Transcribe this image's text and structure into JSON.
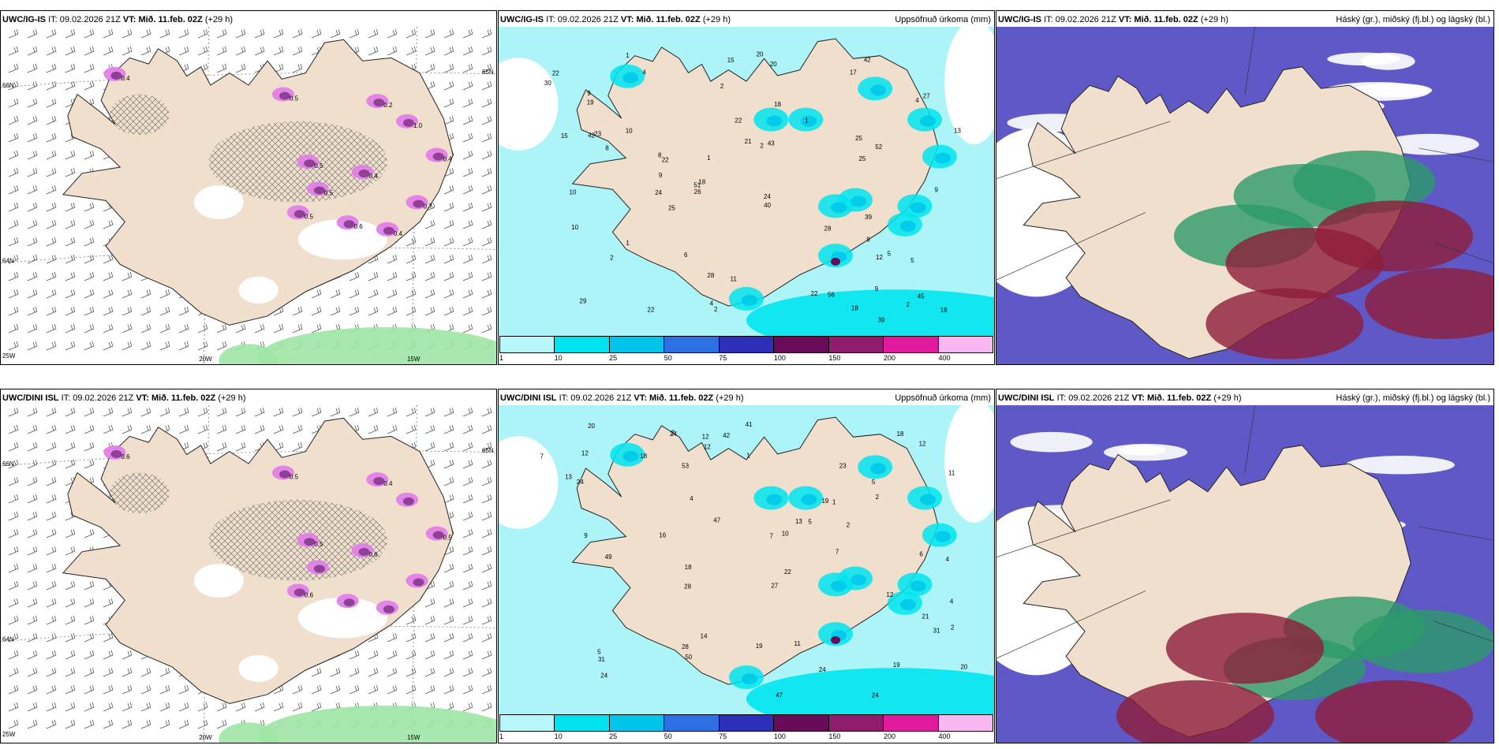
{
  "colors": {
    "land": "#efdfcc",
    "sea_white": "#ffffff",
    "precip_light": "#adf4f8",
    "precip_mid": "#00e5f0",
    "precip_strong": "#00c8ea",
    "snow_pink": "#e27fe8",
    "snow_purple": "#8a3d90",
    "cloud_high": "#5f59c8",
    "cloud_mid": "#2c9a6a",
    "cloud_low": "#8e1d3a",
    "green_wind": "#9fe6a5"
  },
  "colorbar": {
    "ticks": [
      "1",
      "10",
      "25",
      "50",
      "75",
      "100",
      "150",
      "200",
      "400"
    ],
    "colors": [
      "#b9f6fb",
      "#00e3ef",
      "#00c4ea",
      "#2f6fe4",
      "#2c2fb8",
      "#6a0b5a",
      "#8f1c6c",
      "#e01a9a",
      "#f7b8f2"
    ]
  },
  "panels": [
    {
      "id": "ig-snow",
      "model": "UWC/IG-IS",
      "it_label": "IT:",
      "it_value": "09.02.2026 21Z",
      "vt_label": "VT:",
      "vt_value": "Mið. 11.feb. 02Z",
      "lead": "(+29 h)",
      "right_title": "",
      "type": "snow",
      "axis_labels": [
        "66N",
        "65N",
        "64N",
        "25W",
        "20W",
        "15W"
      ],
      "values": [
        "0.4",
        "0.5",
        "0.2",
        "0.5",
        "0.4",
        "0.4",
        "0.5",
        "1.0",
        "0.5",
        "0.6",
        "0.4",
        "0.7"
      ]
    },
    {
      "id": "ig-precip",
      "model": "UWC/IG-IS",
      "it_label": "IT:",
      "it_value": "09.02.2026 21Z",
      "vt_label": "VT:",
      "vt_value": "Mið. 11.feb. 02Z",
      "lead": "(+29 h)",
      "right_title": "Uppsöfnuð úrkoma (mm)",
      "type": "precip",
      "values": [
        "2",
        "22",
        "40",
        "10",
        "4",
        "1",
        "2",
        "1",
        "1",
        "2",
        "2",
        "2",
        "17",
        "28",
        "20",
        "18",
        "22",
        "21",
        "9",
        "23",
        "19",
        "25",
        "30",
        "18",
        "22",
        "15",
        "56",
        "13",
        "25",
        "8",
        "39",
        "24",
        "5",
        "15",
        "6",
        "52",
        "10",
        "22",
        "51",
        "10",
        "11",
        "9",
        "39",
        "8",
        "5",
        "29",
        "25",
        "26",
        "24",
        "20",
        "27",
        "28",
        "45",
        "42",
        "22",
        "9",
        "9",
        "9",
        "18",
        "12",
        "18",
        "43",
        "1",
        "4",
        "4",
        "42"
      ]
    },
    {
      "id": "ig-cloud",
      "model": "UWC/IG-IS",
      "it_label": "IT:",
      "it_value": "09.02.2026 21Z",
      "vt_label": "VT:",
      "vt_value": "Mið. 11.feb. 02Z",
      "lead": "(+29 h)",
      "right_title": "Háský (gr.), miðský (fj.bl.) og lágský (bl.)",
      "type": "cloud"
    },
    {
      "id": "dini-snow",
      "model": "UWC/DINI ISL",
      "it_label": "IT:",
      "it_value": "09.02.2026 21Z",
      "vt_label": "VT:",
      "vt_value": "Mið. 11.feb. 02Z",
      "lead": "(+29 h)",
      "right_title": "",
      "type": "snow",
      "axis_labels": [
        "66N",
        "65N",
        "64N",
        "25W",
        "20W",
        "15W"
      ],
      "values": [
        "0.6",
        "0.5",
        "0.4",
        "0.5",
        "0.6",
        "0.5",
        "0.6"
      ]
    },
    {
      "id": "dini-precip",
      "model": "UWC/DINI ISL",
      "it_label": "IT:",
      "it_value": "09.02.2026 21Z",
      "vt_label": "VT:",
      "vt_value": "Mið. 11.feb. 02Z",
      "lead": "(+29 h)",
      "right_title": "Uppsöfnuð úrkoma (mm)",
      "type": "precip",
      "values": [
        "2",
        "19",
        "42",
        "23",
        "10",
        "4",
        "2",
        "1",
        "1",
        "2",
        "4",
        "28",
        "11",
        "21",
        "18",
        "20",
        "24",
        "53",
        "12",
        "11",
        "49",
        "47",
        "24",
        "5",
        "9",
        "7",
        "12",
        "18",
        "41",
        "12",
        "5",
        "24",
        "28",
        "31",
        "50",
        "24",
        "22",
        "31",
        "27",
        "5",
        "12",
        "2",
        "24",
        "13",
        "14",
        "19",
        "16",
        "20",
        "18",
        "12",
        "19",
        "4",
        "7",
        "6",
        "7",
        "47",
        "13"
      ]
    },
    {
      "id": "dini-cloud",
      "model": "UWC/DINI ISL",
      "it_label": "IT:",
      "it_value": "09.02.2026 21Z",
      "vt_label": "VT:",
      "vt_value": "Mið. 11.feb. 02Z",
      "lead": "(+29 h)",
      "right_title": "Háský (gr.), miðský (fj.bl.) og lágský (bl.)",
      "type": "cloud"
    }
  ]
}
